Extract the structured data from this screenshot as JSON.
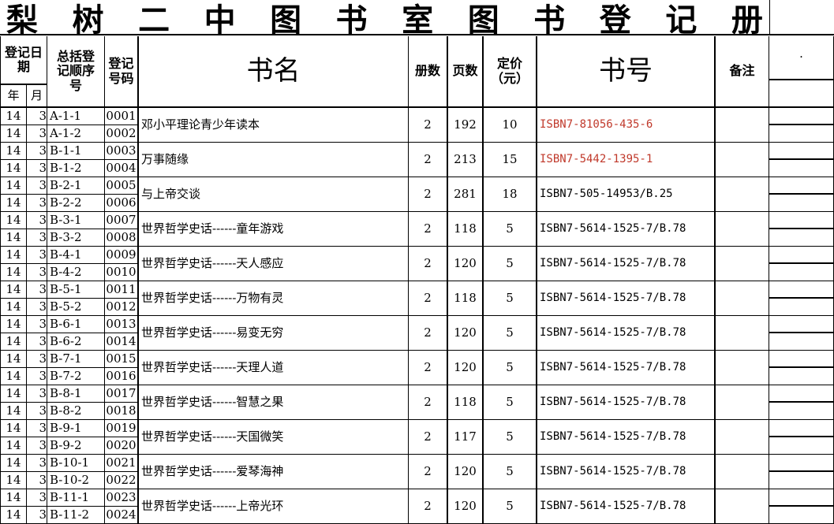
{
  "title_chars": [
    "梨",
    "树",
    "二",
    "中",
    "图",
    "书",
    "室",
    "图",
    "书",
    "登",
    "记",
    "册"
  ],
  "headers": {
    "date": "登记日期",
    "year": "年",
    "month": "月",
    "seq": "总括登记顺序号",
    "regno": "登记号码",
    "name": "书名",
    "copies": "册数",
    "pages": "页数",
    "price": "定价（元）",
    "isbn": "书号",
    "remark": "备注",
    "extra": "·"
  },
  "rows": [
    {
      "y": "14",
      "m": "3",
      "seq": [
        "A-1-1",
        "A-1-2"
      ],
      "no": [
        "0001",
        "0002"
      ],
      "name": "邓小平理论青少年读本",
      "copies": "2",
      "pages": "192",
      "price": "10",
      "isbn": "ISBN7-81056-435-6",
      "red": true
    },
    {
      "y": "14",
      "m": "3",
      "seq": [
        "B-1-1",
        "B-1-2"
      ],
      "no": [
        "0003",
        "0004"
      ],
      "name": "万事随缘",
      "copies": "2",
      "pages": "213",
      "price": "15",
      "isbn": "ISBN7-5442-1395-1",
      "red": true
    },
    {
      "y": "14",
      "m": "3",
      "seq": [
        "B-2-1",
        "B-2-2"
      ],
      "no": [
        "0005",
        "0006"
      ],
      "name": "与上帝交谈",
      "copies": "2",
      "pages": "281",
      "price": "18",
      "isbn": "ISBN7-505-14953/B.25"
    },
    {
      "y": "14",
      "m": "3",
      "seq": [
        "B-3-1",
        "B-3-2"
      ],
      "no": [
        "0007",
        "0008"
      ],
      "name": "世界哲学史话------童年游戏",
      "copies": "2",
      "pages": "118",
      "price": "5",
      "isbn": "ISBN7-5614-1525-7/B.78"
    },
    {
      "y": "14",
      "m": "3",
      "seq": [
        "B-4-1",
        "B-4-2"
      ],
      "no": [
        "0009",
        "0010"
      ],
      "name": "世界哲学史话------天人感应",
      "copies": "2",
      "pages": "120",
      "price": "5",
      "isbn": "ISBN7-5614-1525-7/B.78"
    },
    {
      "y": "14",
      "m": "3",
      "seq": [
        "B-5-1",
        "B-5-2"
      ],
      "no": [
        "0011",
        "0012"
      ],
      "name": "世界哲学史话------万物有灵",
      "copies": "2",
      "pages": "118",
      "price": "5",
      "isbn": "ISBN7-5614-1525-7/B.78"
    },
    {
      "y": "14",
      "m": "3",
      "seq": [
        "B-6-1",
        "B-6-2"
      ],
      "no": [
        "0013",
        "0014"
      ],
      "name": "世界哲学史话------易变无穷",
      "copies": "2",
      "pages": "120",
      "price": "5",
      "isbn": "ISBN7-5614-1525-7/B.78"
    },
    {
      "y": "14",
      "m": "3",
      "seq": [
        "B-7-1",
        "B-7-2"
      ],
      "no": [
        "0015",
        "0016"
      ],
      "name": "世界哲学史话------天理人道",
      "copies": "2",
      "pages": "120",
      "price": "5",
      "isbn": "ISBN7-5614-1525-7/B.78"
    },
    {
      "y": "14",
      "m": "3",
      "seq": [
        "B-8-1",
        "B-8-2"
      ],
      "no": [
        "0017",
        "0018"
      ],
      "name": "世界哲学史话------智慧之果",
      "copies": "2",
      "pages": "118",
      "price": "5",
      "isbn": "ISBN7-5614-1525-7/B.78"
    },
    {
      "y": "14",
      "m": "3",
      "seq": [
        "B-9-1",
        "B-9-2"
      ],
      "no": [
        "0019",
        "0020"
      ],
      "name": "世界哲学史话------天国微笑",
      "copies": "2",
      "pages": "117",
      "price": "5",
      "isbn": "ISBN7-5614-1525-7/B.78"
    },
    {
      "y": "14",
      "m": "3",
      "seq": [
        "B-10-1",
        "B-10-2"
      ],
      "no": [
        "0021",
        "0022"
      ],
      "name": "世界哲学史话------爱琴海神",
      "copies": "2",
      "pages": "120",
      "price": "5",
      "isbn": "ISBN7-5614-1525-7/B.78"
    },
    {
      "y": "14",
      "m": "3",
      "seq": [
        "B-11-1",
        "B-11-2"
      ],
      "no": [
        "0023",
        "0024"
      ],
      "name": "世界哲学史话------上帝光环",
      "copies": "2",
      "pages": "120",
      "price": "5",
      "isbn": "ISBN7-5614-1525-7/B.78"
    }
  ],
  "colors": {
    "isbn_red": "#c0392b"
  }
}
